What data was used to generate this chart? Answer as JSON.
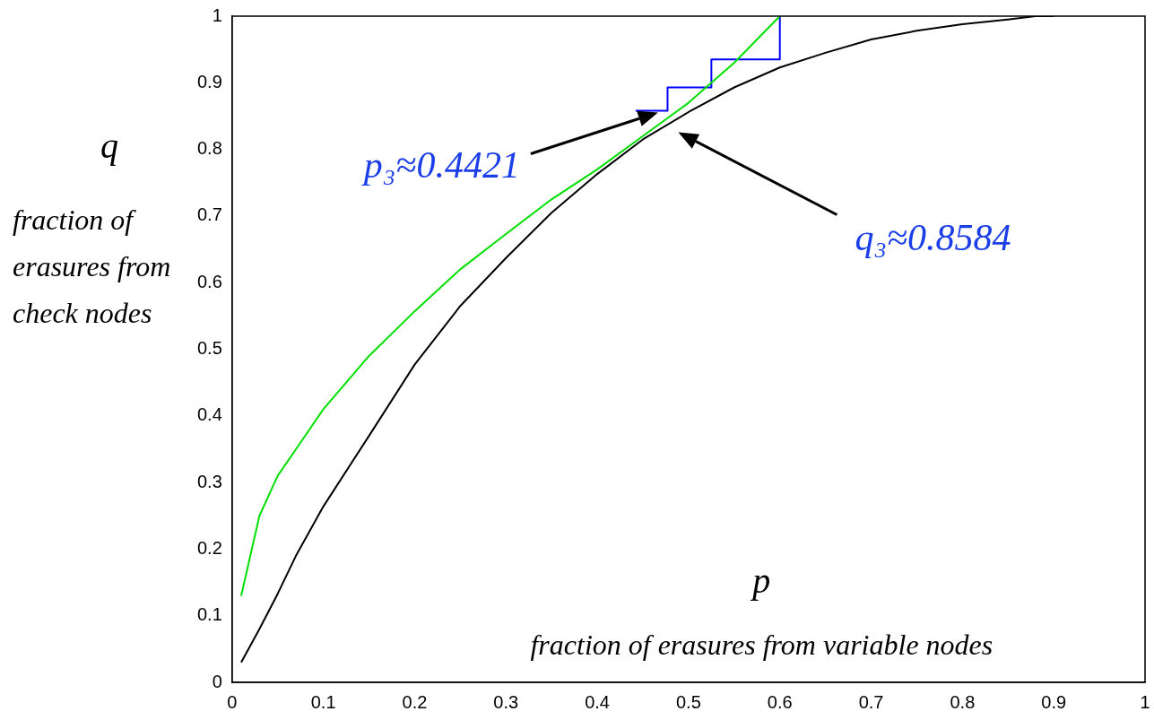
{
  "chart_data": {
    "type": "line",
    "xlabel": "p",
    "ylabel": "q",
    "xlim": [
      0,
      1
    ],
    "ylim": [
      0,
      1
    ],
    "xticks": [
      0,
      0.1,
      0.2,
      0.3,
      0.4,
      0.5,
      0.6,
      0.7,
      0.8,
      0.9,
      1
    ],
    "yticks": [
      0,
      0.1,
      0.2,
      0.3,
      0.4,
      0.5,
      0.6,
      0.7,
      0.8,
      0.9,
      1
    ],
    "grid": false,
    "legend": false,
    "marker": "none",
    "line_style": "solid",
    "series": [
      {
        "color": "#00e000",
        "x": [
          0.01,
          0.03,
          0.05,
          0.07,
          0.1,
          0.15,
          0.2,
          0.25,
          0.3,
          0.35,
          0.4,
          0.45,
          0.5,
          0.55,
          0.6
        ],
        "values": [
          0.13,
          0.25,
          0.31,
          0.35,
          0.41,
          0.49,
          0.557,
          0.62,
          0.673,
          0.725,
          0.77,
          0.82,
          0.87,
          0.93,
          1.0
        ]
      },
      {
        "color": "#000000",
        "x": [
          0.01,
          0.03,
          0.05,
          0.07,
          0.1,
          0.15,
          0.2,
          0.25,
          0.3,
          0.35,
          0.4,
          0.45,
          0.5,
          0.55,
          0.6,
          0.65,
          0.7,
          0.75,
          0.8,
          0.85,
          0.88,
          0.9
        ],
        "values": [
          0.03,
          0.08,
          0.133,
          0.19,
          0.264,
          0.37,
          0.477,
          0.565,
          0.637,
          0.705,
          0.763,
          0.815,
          0.856,
          0.893,
          0.923,
          0.945,
          0.965,
          0.978,
          0.988,
          0.995,
          1.0,
          1.0
        ]
      },
      {
        "color": "#0000ff",
        "x": [
          0.6,
          0.6,
          0.525,
          0.525,
          0.477,
          0.477,
          0.442
        ],
        "values": [
          1.0,
          0.935,
          0.935,
          0.893,
          0.893,
          0.858,
          0.858
        ]
      }
    ],
    "annotations": [
      "p₃≈0.4421",
      "q₃≈0.8584",
      "fraction of erasures from check nodes",
      "fraction of erasures from variable nodes"
    ]
  }
}
